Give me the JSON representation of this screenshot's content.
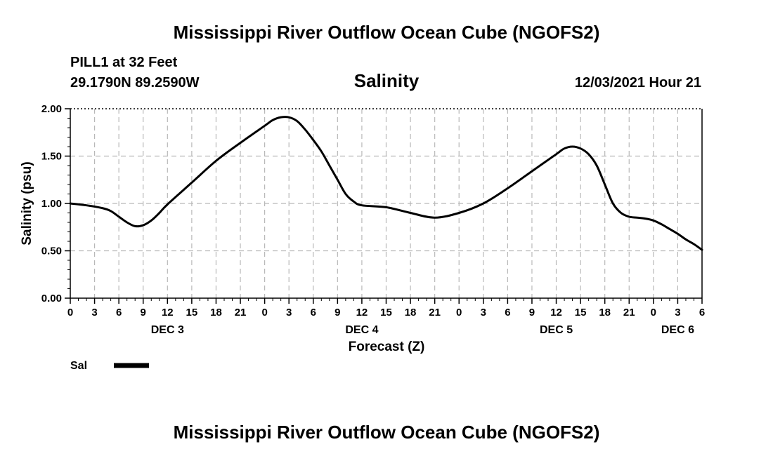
{
  "header": {
    "title": "Mississippi River Outflow Ocean Cube (NGOFS2)",
    "station": "PILL1 at 32 Feet",
    "coords": "29.1790N  89.2590W",
    "timestamp": "12/03/2021 Hour 21"
  },
  "footer": {
    "title": "Mississippi River Outflow Ocean Cube (NGOFS2)"
  },
  "chart_data": {
    "type": "line",
    "title": "Salinity",
    "xlabel": "Forecast (Z)",
    "ylabel": "Salinity (psu)",
    "ylim": [
      0,
      2
    ],
    "xlim": [
      0,
      78
    ],
    "x_unit": "hours from DEC 3 00Z",
    "grid": true,
    "yticks": [
      "0.00",
      "0.50",
      "1.00",
      "1.50",
      "2.00"
    ],
    "xtick_labels": [
      "0",
      "3",
      "6",
      "9",
      "12",
      "15",
      "18",
      "21",
      "0",
      "3",
      "6",
      "9",
      "12",
      "15",
      "18",
      "21",
      "0",
      "3",
      "6",
      "9",
      "12",
      "15",
      "18",
      "21",
      "0",
      "3",
      "6"
    ],
    "day_labels": [
      {
        "x": 12,
        "label": "DEC 3"
      },
      {
        "x": 36,
        "label": "DEC 4"
      },
      {
        "x": 60,
        "label": "DEC 5"
      },
      {
        "x": 75,
        "label": "DEC 6"
      }
    ],
    "legend": {
      "position": "bottom-left",
      "entries": [
        "Sal"
      ]
    },
    "series": [
      {
        "name": "Sal",
        "color": "#000000",
        "x": [
          0,
          2,
          4,
          5,
          6,
          7,
          8,
          9,
          10,
          11,
          12,
          15,
          18,
          21,
          24,
          25,
          26,
          27,
          28,
          29,
          30,
          31,
          32,
          33,
          34,
          35,
          36,
          39,
          42,
          45,
          48,
          51,
          54,
          57,
          60,
          61,
          62,
          63,
          64,
          65,
          66,
          67,
          68,
          69,
          70,
          71,
          72,
          73,
          74,
          75,
          76,
          77,
          78
        ],
        "values": [
          1.0,
          0.98,
          0.95,
          0.92,
          0.86,
          0.8,
          0.76,
          0.77,
          0.82,
          0.9,
          0.99,
          1.22,
          1.45,
          1.64,
          1.82,
          1.88,
          1.91,
          1.91,
          1.87,
          1.78,
          1.67,
          1.55,
          1.4,
          1.25,
          1.1,
          1.02,
          0.98,
          0.96,
          0.9,
          0.85,
          0.9,
          1.0,
          1.16,
          1.34,
          1.52,
          1.58,
          1.6,
          1.58,
          1.52,
          1.4,
          1.2,
          1.0,
          0.9,
          0.86,
          0.85,
          0.84,
          0.82,
          0.78,
          0.73,
          0.68,
          0.62,
          0.57,
          0.51
        ]
      }
    ]
  }
}
